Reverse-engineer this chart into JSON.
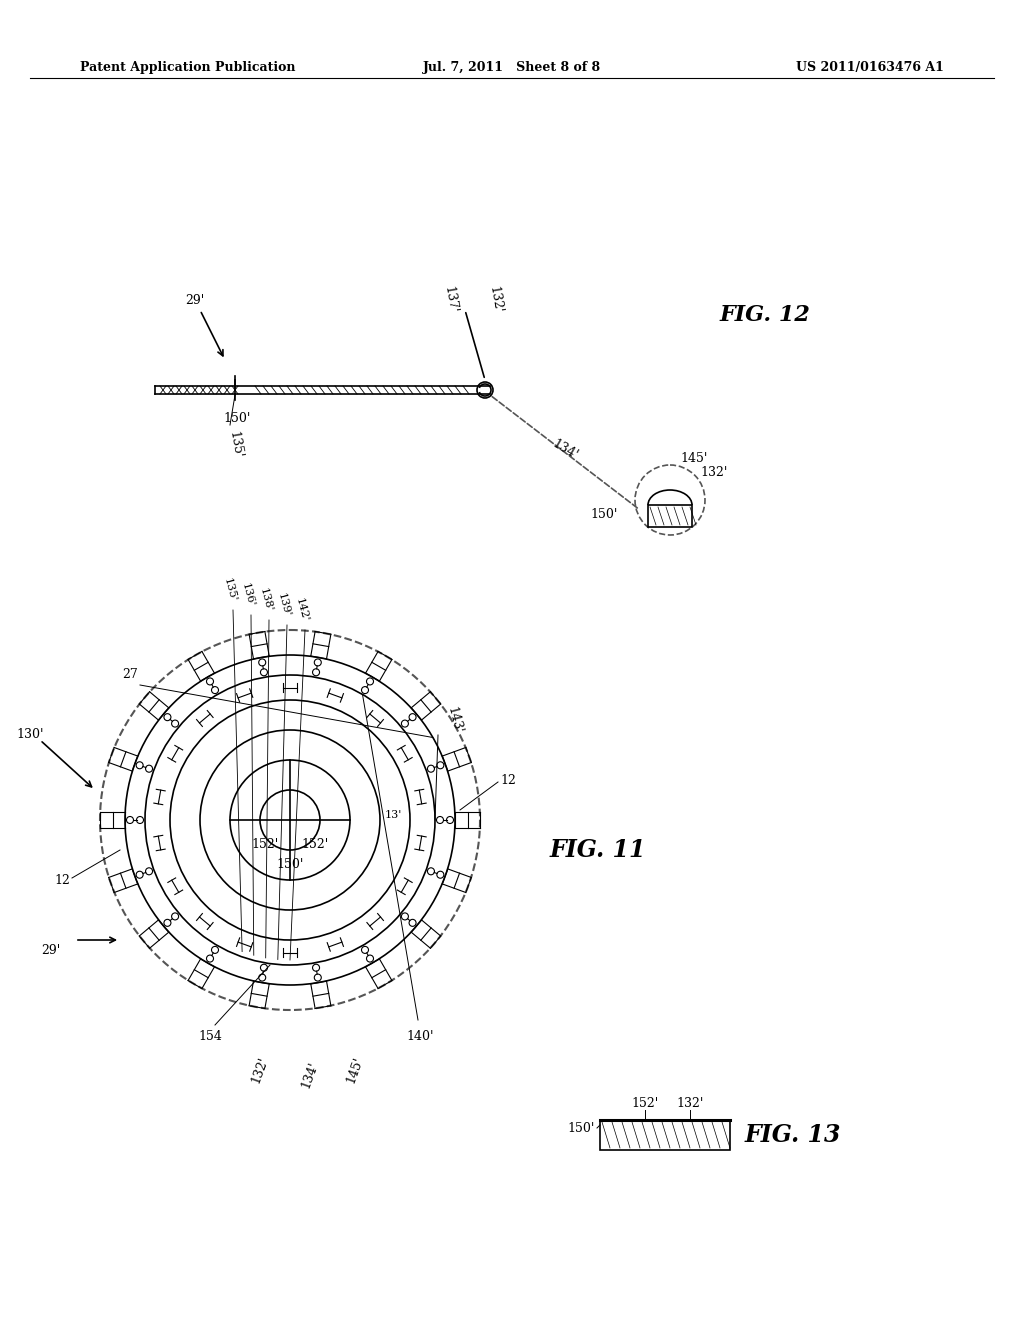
{
  "bg_color": "#ffffff",
  "header_left": "Patent Application Publication",
  "header_mid": "Jul. 7, 2011   Sheet 8 of 8",
  "header_right": "US 2011/0163476 A1",
  "fig11_label": "FIG. 11",
  "fig12_label": "FIG. 12",
  "fig13_label": "FIG. 13",
  "text_color": "#000000",
  "line_color": "#000000",
  "dashed_color": "#555555"
}
